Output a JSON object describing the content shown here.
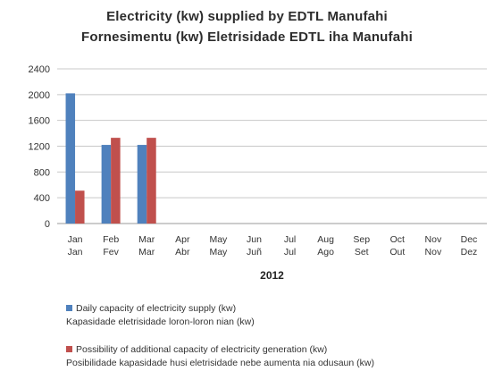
{
  "chart_data": {
    "type": "bar",
    "title": "Electricity (kw) supplied by EDTL Manufahi",
    "subtitle": "Fornesimentu (kw) Eletrisidade EDTL iha Manufahi",
    "xlabel": "2012",
    "categories": [
      "Jan",
      "Feb",
      "Mar",
      "Apr",
      "May",
      "Jun",
      "Jul",
      "Aug",
      "Sep",
      "Oct",
      "Nov",
      "Dec"
    ],
    "categories_tetum": [
      "Jan",
      "Fev",
      "Mar",
      "Abr",
      "May",
      "Juñ",
      "Jul",
      "Ago",
      "Set",
      "Out",
      "Nov",
      "Dez"
    ],
    "ylim": [
      0,
      2400
    ],
    "yticks": [
      0,
      400,
      800,
      1200,
      1600,
      2000,
      2400
    ],
    "grid": true,
    "legend_position": "bottom",
    "series": [
      {
        "name": "Daily capacity of electricity supply (kw)",
        "name_tetum": "Kapasidade eletrisidade loron-loron  nian (kw)",
        "color": "#4f81bd",
        "values": [
          2020,
          1220,
          1220,
          null,
          null,
          null,
          null,
          null,
          null,
          null,
          null,
          null
        ]
      },
      {
        "name": "Possibility of additional capacity of electricity generation (kw)",
        "name_tetum": "Posibilidade kapasidade husi eletrisidade nebe aumenta nia odusaun (kw)",
        "color": "#c0504d",
        "values": [
          510,
          1330,
          1330,
          null,
          null,
          null,
          null,
          null,
          null,
          null,
          null,
          null
        ]
      }
    ]
  }
}
